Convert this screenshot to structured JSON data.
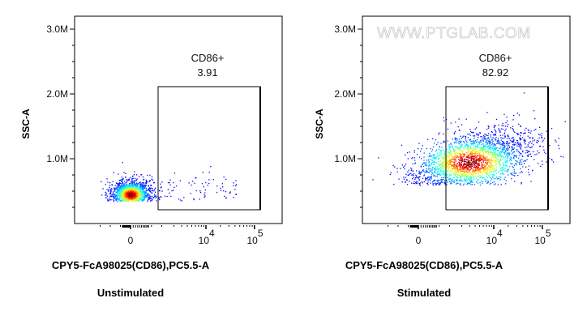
{
  "chart_data": [
    {
      "type": "scatter",
      "subtitle": "Unstimulated",
      "xlabel": "CPY5-FcA98025(CD86),PC5.5-A",
      "ylabel": "SSC-A",
      "y_ticks": [
        "1.0M",
        "2.0M",
        "3.0M"
      ],
      "x_ticks": [
        "0",
        "10",
        "10"
      ],
      "x_tick_exp": [
        "",
        "4",
        "5"
      ],
      "x_scale": "biexponential",
      "ylim": [
        0,
        3200000
      ],
      "gate": {
        "name": "CD86+",
        "value": "3.91"
      },
      "population": {
        "center_x": 0,
        "center_y": 450000
      }
    },
    {
      "type": "scatter",
      "subtitle": "Stimulated",
      "xlabel": "CPY5-FcA98025(CD86),PC5.5-A",
      "ylabel": "SSC-A",
      "y_ticks": [
        "1.0M",
        "2.0M",
        "3.0M"
      ],
      "x_ticks": [
        "0",
        "10",
        "10"
      ],
      "x_tick_exp": [
        "",
        "4",
        "5"
      ],
      "x_scale": "biexponential",
      "ylim": [
        0,
        3200000
      ],
      "gate": {
        "name": "CD86+",
        "value": "82.92"
      },
      "population": {
        "center_x": 3000,
        "center_y": 950000
      },
      "watermark": "WWW.PTGLAB.COM"
    }
  ]
}
